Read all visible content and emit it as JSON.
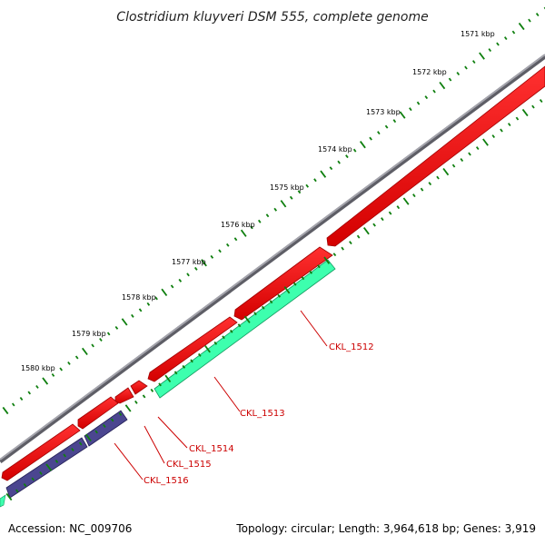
{
  "title": "Clostridium kluyveri DSM 555, complete genome",
  "footer": {
    "accession": "Accession: NC_009706",
    "summary": "Topology: circular; Length: 3,964,618 bp; Genes: 3,919"
  },
  "colors": {
    "backbone": "#8e8e94",
    "cds_forward": "#ff0000",
    "cds_forward_shade": "#b80000",
    "gene_reverse": "#33ffaa",
    "gene_reverse_shade": "#1dbb7c",
    "gene_reverse_alt": "#4b4690",
    "gene_reverse_alt_shade": "#2c2870",
    "tick": "#0f7f0f",
    "label_line": "#cc0000"
  },
  "ticks": [
    {
      "label": "1571 kbp"
    },
    {
      "label": "1572 kbp"
    },
    {
      "label": "1573 kbp"
    },
    {
      "label": "1574 kbp"
    },
    {
      "label": "1575 kbp"
    },
    {
      "label": "1576 kbp"
    },
    {
      "label": "1577 kbp"
    },
    {
      "label": "1578 kbp"
    },
    {
      "label": "1579 kbp"
    },
    {
      "label": "1580 kbp"
    }
  ],
  "gene_labels": [
    {
      "label": "CKL_1512"
    },
    {
      "label": "CKL_1513"
    },
    {
      "label": "CKL_1514"
    },
    {
      "label": "CKL_1515"
    },
    {
      "label": "CKL_1516"
    }
  ]
}
